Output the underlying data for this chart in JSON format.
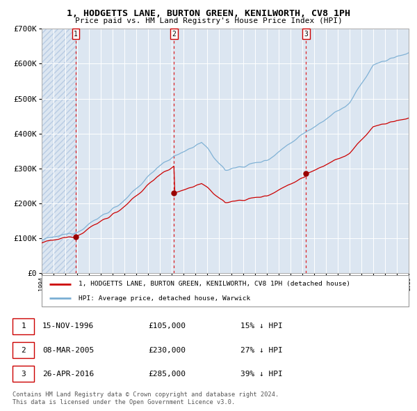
{
  "title": "1, HODGETTS LANE, BURTON GREEN, KENILWORTH, CV8 1PH",
  "subtitle": "Price paid vs. HM Land Registry's House Price Index (HPI)",
  "x_start_year": 1994,
  "x_end_year": 2025,
  "ylim": [
    0,
    700000
  ],
  "yticks": [
    0,
    100000,
    200000,
    300000,
    400000,
    500000,
    600000,
    700000
  ],
  "ytick_labels": [
    "£0",
    "£100K",
    "£200K",
    "£300K",
    "£400K",
    "£500K",
    "£600K",
    "£700K"
  ],
  "sale_dates": [
    1996.88,
    2005.18,
    2016.32
  ],
  "sale_prices": [
    105000,
    230000,
    285000
  ],
  "sale_labels": [
    "1",
    "2",
    "3"
  ],
  "hpi_color": "#7bafd4",
  "sale_color": "#cc0000",
  "marker_color": "#990000",
  "background_color": "#dce6f1",
  "legend_sale_label": "1, HODGETTS LANE, BURTON GREEN, KENILWORTH, CV8 1PH (detached house)",
  "legend_hpi_label": "HPI: Average price, detached house, Warwick",
  "table_data": [
    [
      "1",
      "15-NOV-1996",
      "£105,000",
      "15% ↓ HPI"
    ],
    [
      "2",
      "08-MAR-2005",
      "£230,000",
      "27% ↓ HPI"
    ],
    [
      "3",
      "26-APR-2016",
      "£285,000",
      "39% ↓ HPI"
    ]
  ],
  "footnote": "Contains HM Land Registry data © Crown copyright and database right 2024.\nThis data is licensed under the Open Government Licence v3.0."
}
